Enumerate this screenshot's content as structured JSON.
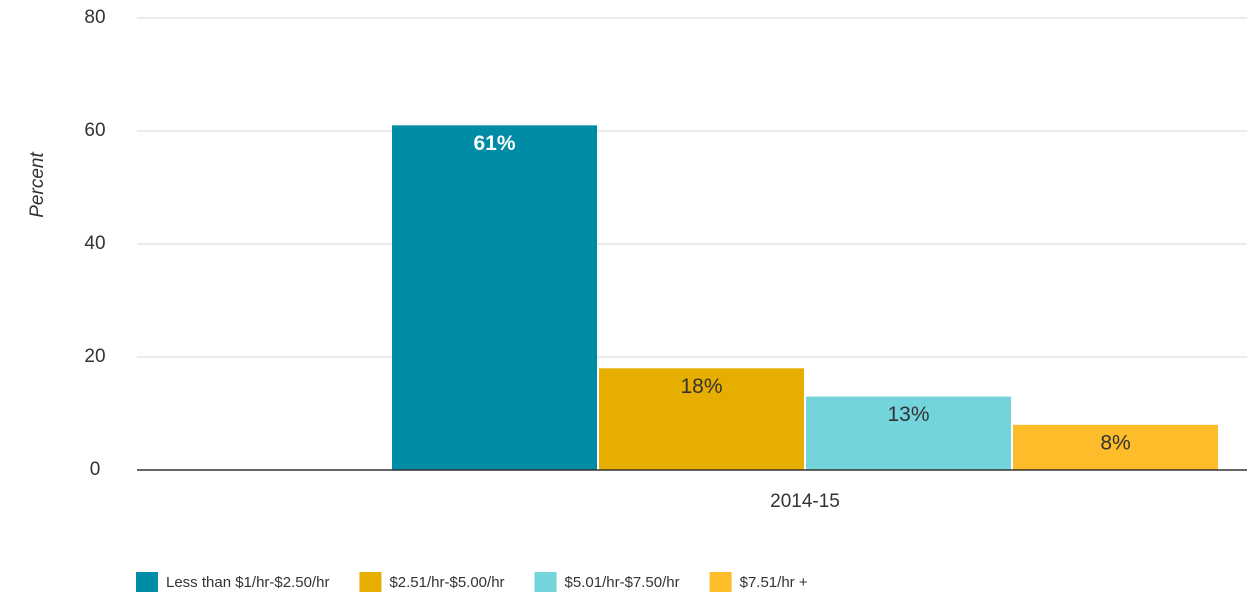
{
  "chart_data": {
    "type": "bar",
    "categories": [
      "2014-15"
    ],
    "series": [
      {
        "name": "Less than $1/hr-$2.50/hr",
        "color": "#008ba6",
        "values": [
          61
        ],
        "value_labels": [
          "61%"
        ]
      },
      {
        "name": "$2.51/hr-$5.00/hr",
        "color": "#e5ae00",
        "values": [
          18
        ],
        "value_labels": [
          "18%"
        ]
      },
      {
        "name": "$5.01/hr-$7.50/hr",
        "color": "#74d4dc",
        "values": [
          13
        ],
        "value_labels": [
          "13%"
        ]
      },
      {
        "name": "$7.51/hr +",
        "color": "#fdbc2a",
        "values": [
          8
        ],
        "value_labels": [
          "8%"
        ]
      }
    ],
    "y_label": "Percent",
    "ylim": [
      0,
      80
    ],
    "yticks": [
      0,
      20,
      40,
      60,
      80
    ],
    "grid": true,
    "legend": "bottom"
  }
}
